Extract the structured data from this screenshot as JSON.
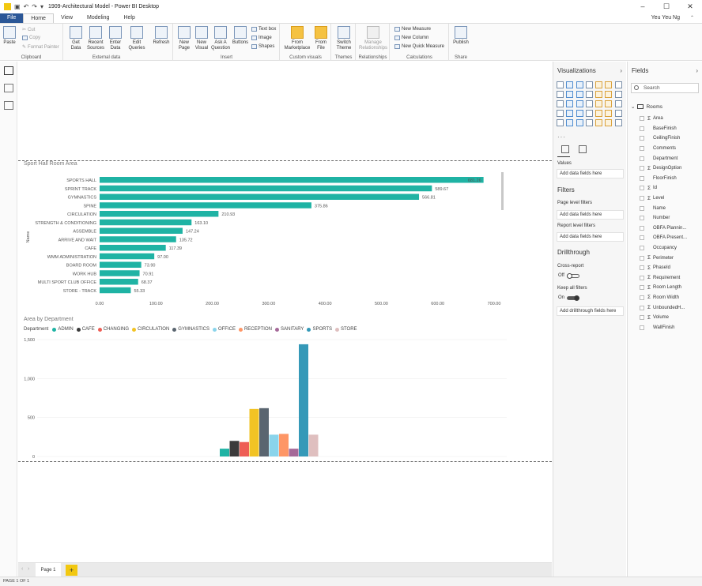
{
  "window": {
    "title": "1909-Architectural Model - Power BI Desktop",
    "minimize": "–",
    "maximize": "☐",
    "close": "✕"
  },
  "menu": {
    "tabs": [
      "File",
      "Home",
      "View",
      "Modeling",
      "Help"
    ],
    "user": "Yeu Yeu Ng"
  },
  "ribbon": {
    "clipboard": {
      "label": "Clipboard",
      "paste": "Paste",
      "cut": "Cut",
      "copy": "Copy",
      "format_painter": "Format Painter"
    },
    "external": {
      "label": "External data",
      "get_data": "Get Data",
      "recent_sources": "Recent Sources",
      "enter_data": "Enter Data",
      "edit_queries": "Edit Queries"
    },
    "refresh": "Refresh",
    "insert": {
      "label": "Insert",
      "new_page": "New Page",
      "new_visual": "New Visual",
      "ask": "Ask A Question",
      "buttons": "Buttons",
      "textbox": "Text box",
      "image": "Image",
      "shapes": "Shapes"
    },
    "custom": {
      "label": "Custom visuals",
      "marketplace": "From Marketplace",
      "file": "From File"
    },
    "themes": {
      "label": "Themes",
      "switch": "Switch Theme"
    },
    "relationships": {
      "label": "Relationships",
      "manage": "Manage Relationships"
    },
    "calculations": {
      "label": "Calculations",
      "new_measure": "New Measure",
      "new_column": "New Column",
      "new_quick_measure": "New Quick Measure"
    },
    "share": {
      "label": "Share",
      "publish": "Publish"
    }
  },
  "pages": {
    "tab": "Page 1",
    "add": "+",
    "status": "PAGE 1 OF 1"
  },
  "visualizations_pane": {
    "title": "Visualizations",
    "more": "···",
    "values_label": "Values",
    "values_well": "Add data fields here",
    "filters_title": "Filters",
    "page_filters": "Page level filters",
    "page_well": "Add data fields here",
    "report_filters": "Report level filters",
    "report_well": "Add data fields here",
    "drillthrough_title": "Drillthrough",
    "cross_report": "Cross-report",
    "cross_state": "Off",
    "keep_filters": "Keep all filters",
    "keep_state": "On",
    "drill_well": "Add drillthrough fields here"
  },
  "fields_pane": {
    "title": "Fields",
    "search_placeholder": "Search",
    "table": "Rooms",
    "fields": [
      {
        "name": "Area",
        "sigma": true
      },
      {
        "name": "BaseFinish",
        "sigma": false
      },
      {
        "name": "CeilingFinish",
        "sigma": false
      },
      {
        "name": "Comments",
        "sigma": false
      },
      {
        "name": "Department",
        "sigma": false
      },
      {
        "name": "DesignOption",
        "sigma": true
      },
      {
        "name": "FloorFinish",
        "sigma": false
      },
      {
        "name": "Id",
        "sigma": true
      },
      {
        "name": "Level",
        "sigma": true
      },
      {
        "name": "Name",
        "sigma": false
      },
      {
        "name": "Number",
        "sigma": false
      },
      {
        "name": "OBFA Plannin...",
        "sigma": false
      },
      {
        "name": "OBFA Present...",
        "sigma": false
      },
      {
        "name": "Occupancy",
        "sigma": false
      },
      {
        "name": "Perimeter",
        "sigma": true
      },
      {
        "name": "PhaseId",
        "sigma": true
      },
      {
        "name": "Requirement",
        "sigma": true
      },
      {
        "name": "Room Length",
        "sigma": true
      },
      {
        "name": "Room Width",
        "sigma": true
      },
      {
        "name": "UnboundedH...",
        "sigma": true
      },
      {
        "name": "Volume",
        "sigma": true
      },
      {
        "name": "WallFinish",
        "sigma": false
      }
    ]
  },
  "chart_data": [
    {
      "type": "bar",
      "orientation": "horizontal",
      "title": "Sport Hall Room Area",
      "ylabel": "Name",
      "xlim": [
        0,
        700
      ],
      "x_ticks": [
        "0.00",
        "100.00",
        "200.00",
        "300.00",
        "400.00",
        "500.00",
        "600.00",
        "700.00"
      ],
      "categories": [
        "SPORTS HALL",
        "SPRINT TRACK",
        "GYMNASTICS",
        "SPINE",
        "CIRCULATION",
        "STRENGTH & CONDITIONING",
        "ASSEMBLE",
        "ARRIVE AND WAIT",
        "CAFE",
        "WMM ADMINISTRATION",
        "BOARD ROOM",
        "WORK HUB",
        "MULTI SPORT CLUB OFFICE",
        "STORE - TRACK"
      ],
      "values": [
        681.26,
        589.67,
        566.81,
        375.86,
        210.93,
        163.1,
        147.24,
        135.72,
        117.39,
        97.0,
        73.9,
        70.91,
        68.37,
        55.33
      ],
      "value_labels": [
        "681.26",
        "589.67",
        "566.81",
        "375.86",
        "210.93",
        "163.10",
        "147.24",
        "135.72",
        "117.39",
        "97.00",
        "73.90",
        "70.91",
        "68.37",
        "55.33"
      ],
      "color": "#1fb3a4"
    },
    {
      "type": "bar",
      "title": "Area by Department",
      "legend_title": "Department",
      "legend_position": "top-left",
      "ylim": [
        0,
        1500
      ],
      "y_ticks": [
        "0",
        "500",
        "1,000",
        "1,500"
      ],
      "categories": [
        "ADMIN",
        "CAFE",
        "CHANGING",
        "CIRCULATION",
        "GYMNASTICS",
        "OFFICE",
        "RECEPTION",
        "SANITARY",
        "SPORTS",
        "STORE"
      ],
      "values": [
        100,
        200,
        185,
        610,
        620,
        280,
        290,
        100,
        1440,
        280
      ],
      "colors": [
        "#1fb3a4",
        "#3b3b3b",
        "#ee5e55",
        "#f2c324",
        "#5a6570",
        "#8ad4eb",
        "#fe9666",
        "#a66999",
        "#3599b8",
        "#dfbfbf"
      ]
    }
  ]
}
